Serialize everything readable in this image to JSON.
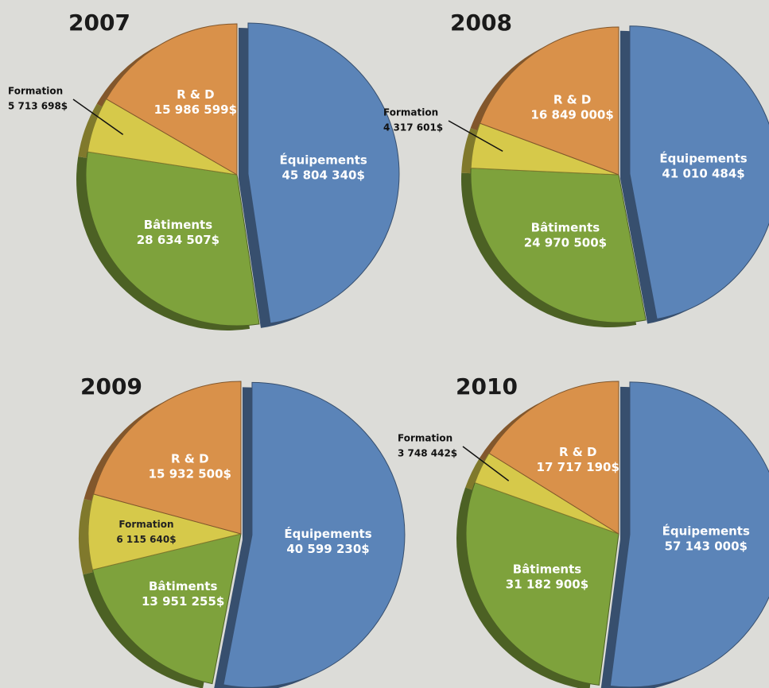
{
  "chart_data": [
    {
      "type": "pie",
      "title": "2007",
      "categories": [
        "Équipements",
        "Bâtiments",
        "Formation",
        "R & D"
      ],
      "values": [
        45804340,
        28634507,
        5713698,
        15986599
      ],
      "value_labels": [
        "45 804 340$",
        "28 634 507$",
        "5 713 698$",
        "15 986 599$"
      ],
      "colors": [
        "#5b84b8",
        "#7ea23c",
        "#d6c94a",
        "#d9914a"
      ]
    },
    {
      "type": "pie",
      "title": "2008",
      "categories": [
        "Équipements",
        "Bâtiments",
        "Formation",
        "R & D"
      ],
      "values": [
        41010484,
        24970500,
        4317601,
        16849000
      ],
      "value_labels": [
        "41 010 484$",
        "24 970 500$",
        "4 317 601$",
        "16 849 000$"
      ],
      "colors": [
        "#5b84b8",
        "#7ea23c",
        "#d6c94a",
        "#d9914a"
      ]
    },
    {
      "type": "pie",
      "title": "2009",
      "categories": [
        "Équipements",
        "Bâtiments",
        "Formation",
        "R & D"
      ],
      "values": [
        40599230,
        13951255,
        6115640,
        15932500
      ],
      "value_labels": [
        "40 599 230$",
        "13 951 255$",
        "6 115 640$",
        "15 932 500$"
      ],
      "colors": [
        "#5b84b8",
        "#7ea23c",
        "#d6c94a",
        "#d9914a"
      ]
    },
    {
      "type": "pie",
      "title": "2010",
      "categories": [
        "Équipements",
        "Bâtiments",
        "Formation",
        "R & D"
      ],
      "values": [
        57143000,
        31182900,
        3748442,
        17717190
      ],
      "value_labels": [
        "57 143 000$",
        "31 182 900$",
        "3 748 442$",
        "17 717 190$"
      ],
      "colors": [
        "#5b84b8",
        "#7ea23c",
        "#d6c94a",
        "#d9914a"
      ]
    }
  ]
}
